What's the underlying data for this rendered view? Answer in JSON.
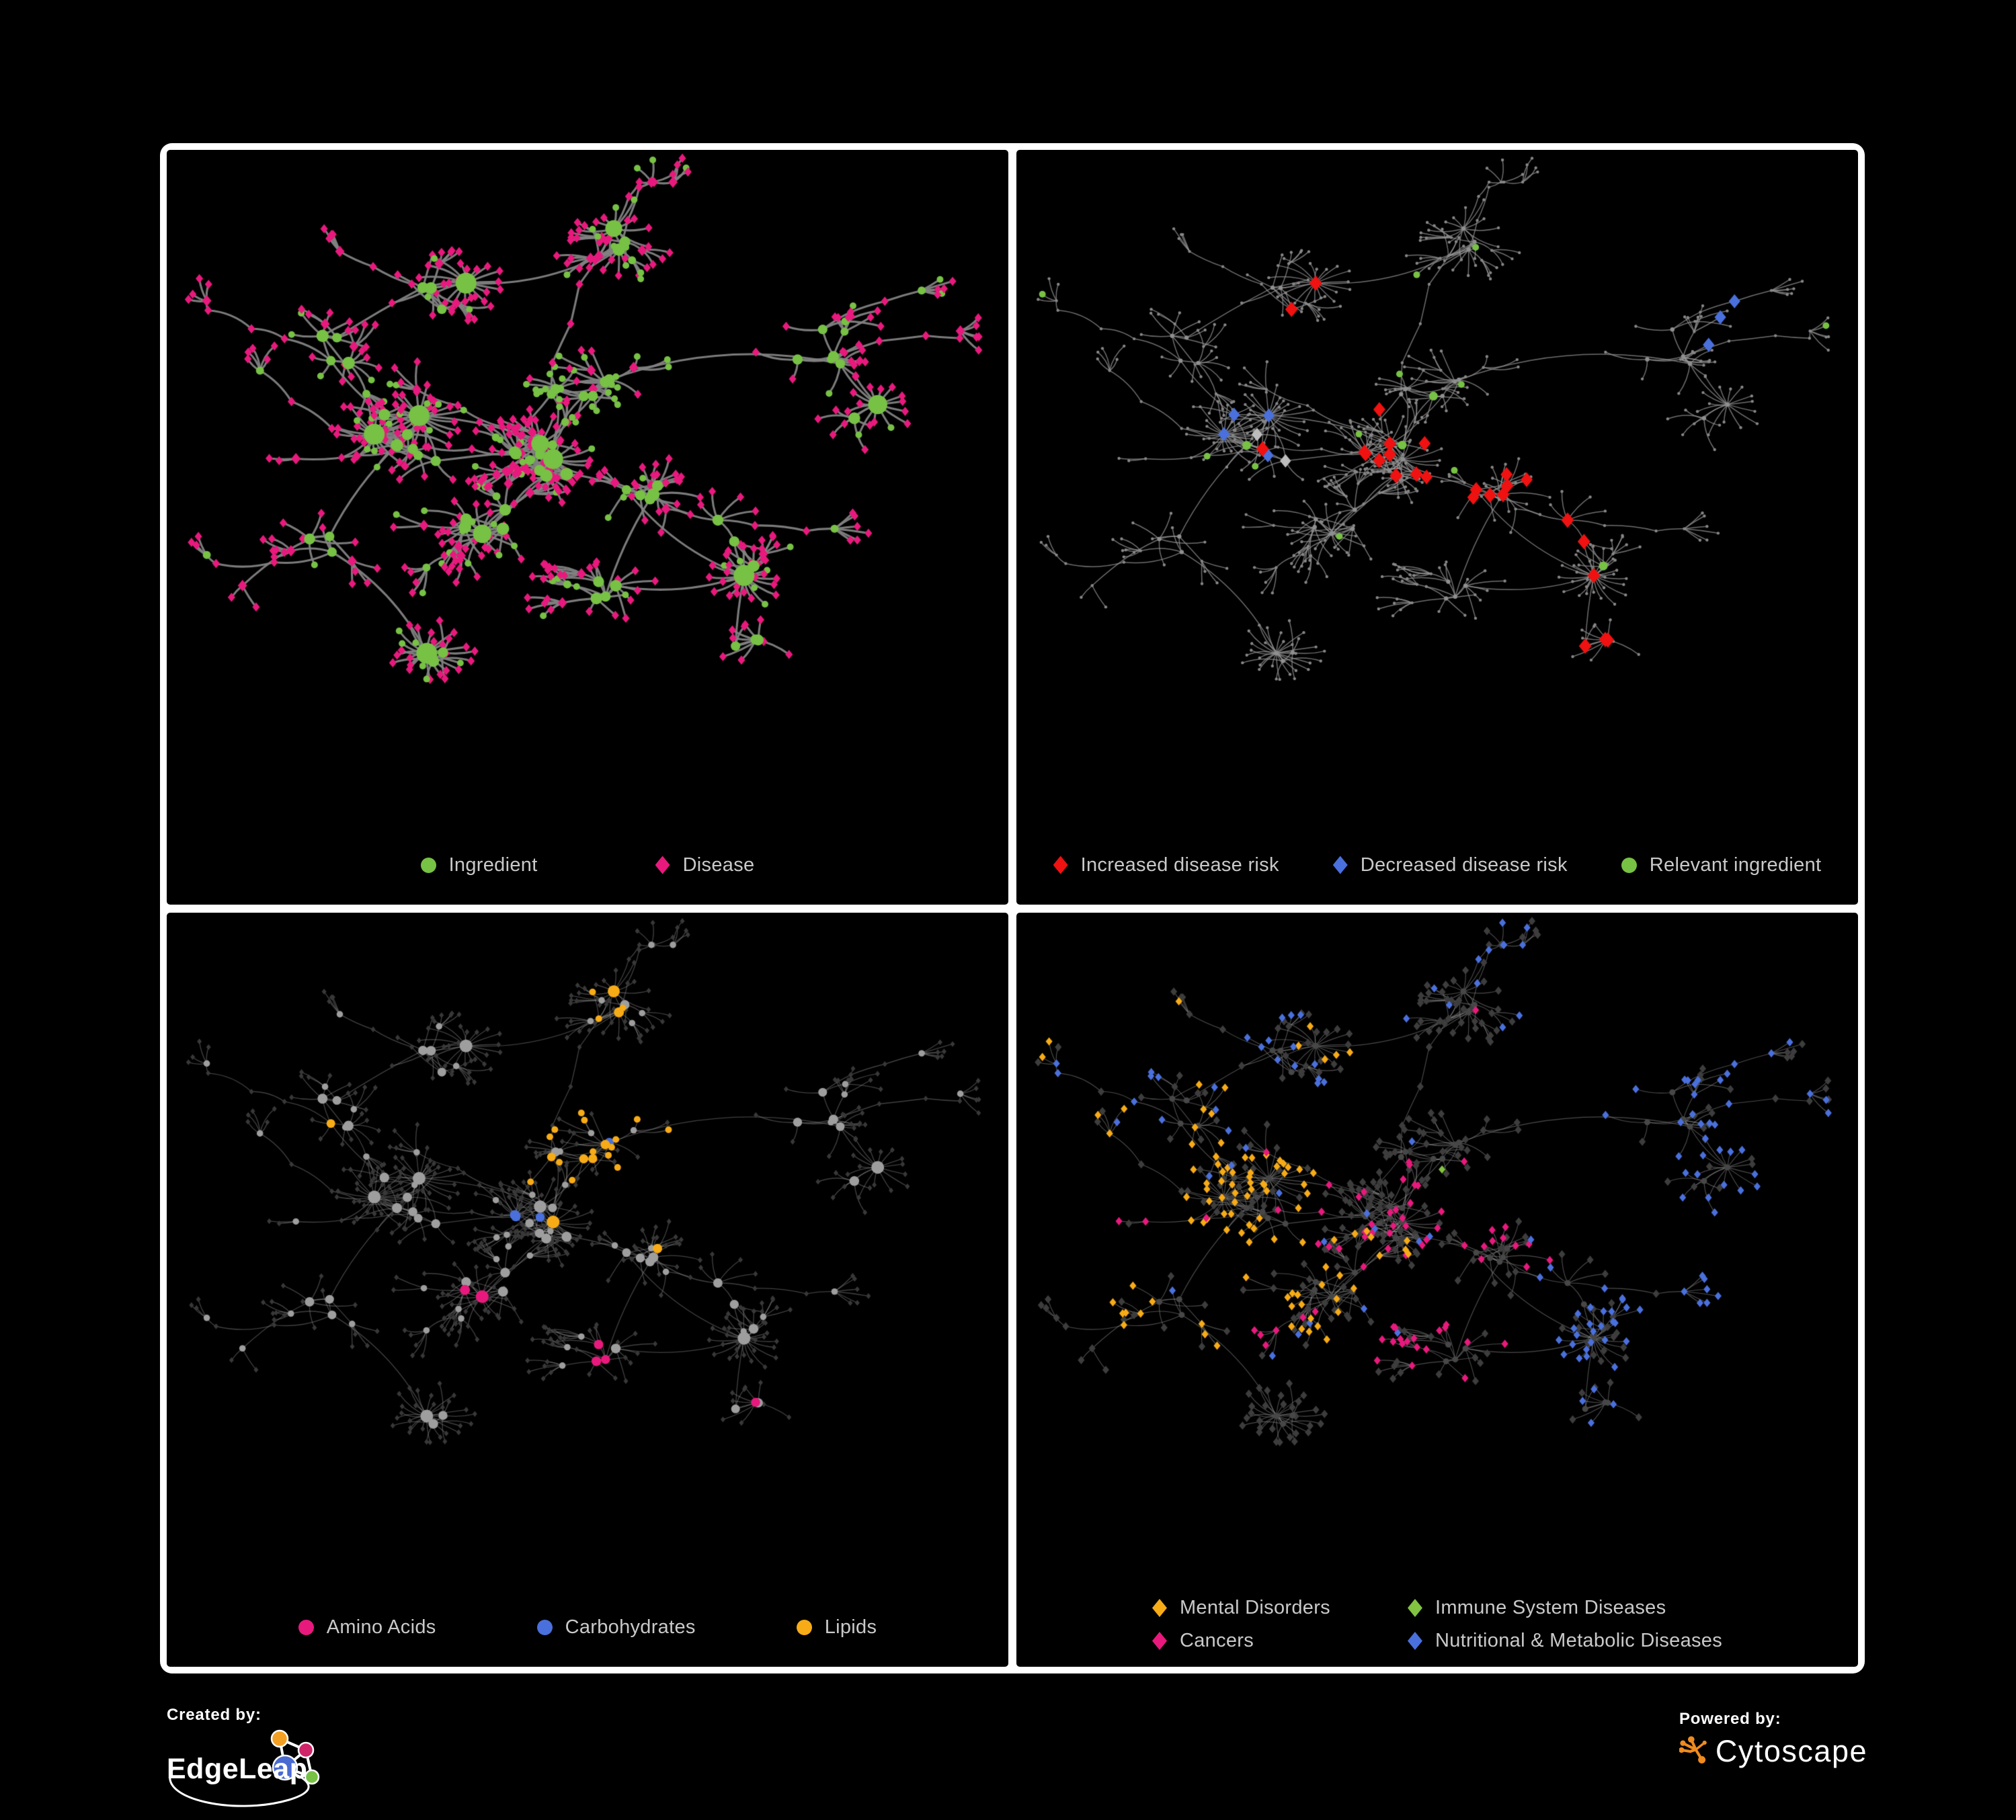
{
  "page": {
    "background": "#000000",
    "frame_color": "#ffffff",
    "legend_text_color": "#c9c9c9"
  },
  "colors": {
    "green": "#77c144",
    "magenta": "#e8197d",
    "red": "#f01111",
    "blue": "#4a70dd",
    "silver": "#bdbdbd",
    "amber": "#f7ab16",
    "immune_green": "#82c341",
    "gray_hub": "#9e9e9e",
    "tiny_gray": "#8f8f8f",
    "dim_diamond": "#3d3d3d",
    "dark_hub": "#474747",
    "edge_gray": "#8a8a8a",
    "cytoscape_orange": "#ef8b1f",
    "edgeleap_orange": "#f2a024",
    "edgeleap_pink": "#cf2468",
    "edgeleap_blue": "#4a6bd0",
    "edgeleap_green": "#77c144"
  },
  "panels": [
    {
      "name": "ingredient-disease",
      "legend": [
        {
          "label": "Ingredient",
          "shape": "circle",
          "color": "green"
        },
        {
          "label": "Disease",
          "shape": "diamond",
          "color": "magenta"
        }
      ]
    },
    {
      "name": "disease-risk",
      "legend": [
        {
          "label": "Increased disease risk",
          "shape": "diamond",
          "color": "red"
        },
        {
          "label": "Decreased disease risk",
          "shape": "diamond",
          "color": "blue"
        },
        {
          "label": "Relevant ingredient",
          "shape": "circle",
          "color": "green"
        }
      ]
    },
    {
      "name": "nutrient-classes",
      "legend": [
        {
          "label": "Amino Acids",
          "shape": "circle",
          "color": "magenta"
        },
        {
          "label": "Carbohydrates",
          "shape": "circle",
          "color": "blue"
        },
        {
          "label": "Lipids",
          "shape": "circle",
          "color": "amber"
        }
      ]
    },
    {
      "name": "disease-categories",
      "legend": [
        {
          "label": "Mental Disorders",
          "shape": "diamond",
          "color": "amber"
        },
        {
          "label": "Immune System Diseases",
          "shape": "diamond",
          "color": "immune_green"
        },
        {
          "label": "Cancers",
          "shape": "diamond",
          "color": "magenta"
        },
        {
          "label": "Nutritional & Metabolic Diseases",
          "shape": "diamond",
          "color": "blue"
        }
      ]
    }
  ],
  "footer": {
    "created_by": "Created by:",
    "edgeleap": "EdgeLeap",
    "powered_by": "Powered by:",
    "cytoscape": "Cytoscape"
  }
}
